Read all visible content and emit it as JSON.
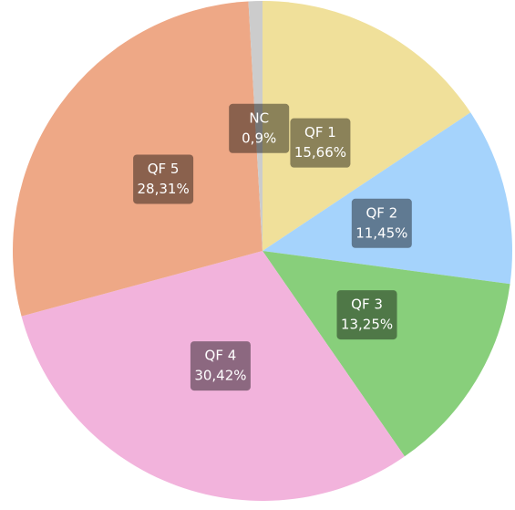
{
  "chart_data": {
    "type": "pie",
    "categories": [
      "QF 1",
      "QF 2",
      "QF 3",
      "QF 4",
      "QF 5",
      "NC"
    ],
    "values": [
      15.66,
      11.45,
      13.25,
      30.42,
      28.31,
      0.9
    ],
    "value_labels": [
      "15,66%",
      "11,45%",
      "13,25%",
      "30,42%",
      "28,31%",
      "0,9%"
    ],
    "colors": [
      "#f0e09a",
      "#a5d3fc",
      "#88cf7b",
      "#f2b3dc",
      "#eea886",
      "#cccccc"
    ]
  }
}
